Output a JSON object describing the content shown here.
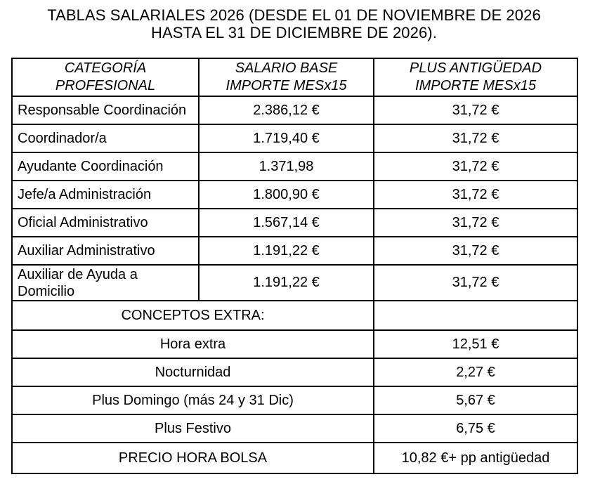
{
  "page": {
    "title_lines": [
      "TABLAS SALARIALES 2026 (DESDE EL 01 DE NOVIEMBRE DE 2026",
      "HASTA EL 31 DE DICIEMBRE DE 2026)."
    ]
  },
  "table": {
    "headers": [
      "CATEGORÍA\nPROFESIONAL",
      "SALARIO BASE\nIMPORTE MESx15",
      "PLUS ANTIGÜEDAD\nIMPORTE MESx15"
    ],
    "salary_rows": [
      {
        "category": "Responsable Coordinación",
        "base": "2.386,12 €",
        "plus": "31,72 €"
      },
      {
        "category": "Coordinador/a",
        "base": "1.719,40 €",
        "plus": "31,72 €"
      },
      {
        "category": "Ayudante Coordinación",
        "base": "1.371,98",
        "plus": "31,72 €"
      },
      {
        "category": "Jefe/a Administración",
        "base": "1.800,90 €",
        "plus": "31,72 €"
      },
      {
        "category": "Oficial Administrativo",
        "base": "1.567,14 €",
        "plus": "31,72 €"
      },
      {
        "category": "Auxiliar Administrativo",
        "base": "1.191,22 €",
        "plus": "31,72 €"
      },
      {
        "category": "Auxiliar de Ayuda a Domicilio",
        "base": "1.191,22 €",
        "plus": "31,72 €"
      }
    ],
    "section_label": "CONCEPTOS EXTRA:",
    "extra_rows": [
      {
        "concept": "Hora extra",
        "value": "12,51 €"
      },
      {
        "concept": "Nocturnidad",
        "value": "2,27 €"
      },
      {
        "concept": "Plus Domingo (más 24 y 31 Dic)",
        "value": "5,67 €"
      },
      {
        "concept": "Plus Festivo",
        "value": "6,75 €"
      },
      {
        "concept": "PRECIO HORA BOLSA",
        "value": "10,82 €+ pp antigüedad"
      }
    ]
  },
  "colors": {
    "background": "#ffffff",
    "text": "#000000",
    "border": "#000000"
  }
}
